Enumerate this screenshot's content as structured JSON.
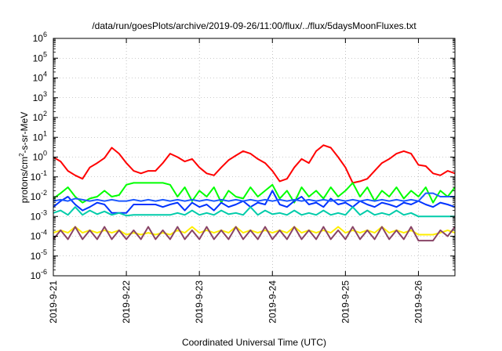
{
  "chart_data": {
    "type": "line",
    "title": "/data/run/goesPlots/archive/2019-09-26/11:00/flux/../flux/5daysMoonFluxes.txt",
    "xlabel": "Coordinated Universal Time (UTC)",
    "ylabel_parts": [
      "protons/cm",
      "2",
      "-s-sr-MeV"
    ],
    "y_scale": "log",
    "ylim_exp": [
      -6,
      6
    ],
    "y_ticks": [
      {
        "base": "10",
        "exp": "-6",
        "value": -6
      },
      {
        "base": "10",
        "exp": "-5",
        "value": -5
      },
      {
        "base": "10",
        "exp": "-4",
        "value": -4
      },
      {
        "base": "10",
        "exp": "-3",
        "value": -3
      },
      {
        "base": "10",
        "exp": "-2",
        "value": -2
      },
      {
        "base": "10",
        "exp": "-1",
        "value": -1
      },
      {
        "base": "10",
        "exp": "0",
        "value": 0
      },
      {
        "base": "10",
        "exp": "1",
        "value": 1
      },
      {
        "base": "10",
        "exp": "2",
        "value": 2
      },
      {
        "base": "10",
        "exp": "3",
        "value": 3
      },
      {
        "base": "10",
        "exp": "4",
        "value": 4
      },
      {
        "base": "10",
        "exp": "5",
        "value": 5
      },
      {
        "base": "10",
        "exp": "6",
        "value": 6
      }
    ],
    "xlim": [
      "2019-9-21",
      "2019-9-26 12:00"
    ],
    "xlim_days": [
      0,
      5.5
    ],
    "x_ticks": [
      {
        "label": "2019-9-21",
        "day": 0
      },
      {
        "label": "2019-9-22",
        "day": 1
      },
      {
        "label": "2019-9-23",
        "day": 2
      },
      {
        "label": "2019-9-24",
        "day": 3
      },
      {
        "label": "2019-9-25",
        "day": 4
      },
      {
        "label": "2019-9-26",
        "day": 5
      }
    ],
    "grid": true,
    "series": [
      {
        "color": "#ff0000",
        "x": [
          0,
          0.1,
          0.2,
          0.3,
          0.4,
          0.5,
          0.6,
          0.7,
          0.8,
          0.9,
          1,
          1.1,
          1.2,
          1.3,
          1.4,
          1.5,
          1.6,
          1.7,
          1.8,
          1.9,
          2,
          2.1,
          2.2,
          2.3,
          2.4,
          2.5,
          2.6,
          2.7,
          2.8,
          2.9,
          3,
          3.1,
          3.2,
          3.3,
          3.4,
          3.5,
          3.6,
          3.7,
          3.8,
          3.9,
          4,
          4.1,
          4.2,
          4.3,
          4.4,
          4.5,
          4.6,
          4.7,
          4.8,
          4.9,
          5,
          5.1,
          5.2,
          5.3,
          5.4,
          5.5
        ],
        "y": [
          1,
          0.6,
          0.2,
          0.12,
          0.08,
          0.3,
          0.5,
          0.9,
          3,
          1.5,
          0.5,
          0.2,
          0.15,
          0.2,
          0.2,
          0.5,
          1.5,
          1,
          0.6,
          0.8,
          0.3,
          0.15,
          0.12,
          0.3,
          0.7,
          1.2,
          2,
          1.5,
          0.8,
          0.5,
          0.2,
          0.06,
          0.08,
          0.3,
          0.8,
          0.5,
          2,
          4,
          3,
          1,
          0.3,
          0.05,
          0.06,
          0.08,
          0.2,
          0.5,
          0.8,
          1.5,
          2,
          1.5,
          0.4,
          0.35,
          0.15,
          0.12,
          0.2,
          0.15
        ]
      },
      {
        "color": "#00ff00",
        "x": [
          0,
          0.1,
          0.2,
          0.3,
          0.4,
          0.5,
          0.6,
          0.7,
          0.8,
          0.9,
          1,
          1.1,
          1.2,
          1.3,
          1.4,
          1.5,
          1.6,
          1.7,
          1.8,
          1.9,
          2,
          2.1,
          2.2,
          2.3,
          2.4,
          2.5,
          2.6,
          2.7,
          2.8,
          2.9,
          3,
          3.1,
          3.2,
          3.3,
          3.4,
          3.5,
          3.6,
          3.7,
          3.8,
          3.9,
          4,
          4.1,
          4.2,
          4.3,
          4.4,
          4.5,
          4.6,
          4.7,
          4.8,
          4.9,
          5,
          5.1,
          5.2,
          5.3,
          5.4,
          5.5
        ],
        "y": [
          0.008,
          0.015,
          0.03,
          0.01,
          0.005,
          0.008,
          0.01,
          0.02,
          0.01,
          0.012,
          0.04,
          0.05,
          0.05,
          0.05,
          0.05,
          0.05,
          0.04,
          0.01,
          0.03,
          0.006,
          0.02,
          0.01,
          0.03,
          0.005,
          0.02,
          0.01,
          0.008,
          0.03,
          0.01,
          0.02,
          0.04,
          0.008,
          0.02,
          0.005,
          0.03,
          0.01,
          0.02,
          0.008,
          0.03,
          0.01,
          0.02,
          0.05,
          0.01,
          0.03,
          0.006,
          0.02,
          0.01,
          0.03,
          0.008,
          0.02,
          0.01,
          0.03,
          0.005,
          0.02,
          0.01,
          0.03
        ]
      },
      {
        "color": "#0033ff",
        "x": [
          0,
          0.1,
          0.2,
          0.3,
          0.4,
          0.5,
          0.6,
          0.7,
          0.8,
          0.9,
          1,
          1.1,
          1.2,
          1.3,
          1.4,
          1.5,
          1.6,
          1.7,
          1.8,
          1.9,
          2,
          2.1,
          2.2,
          2.3,
          2.4,
          2.5,
          2.6,
          2.7,
          2.8,
          2.9,
          3,
          3.1,
          3.2,
          3.3,
          3.4,
          3.5,
          3.6,
          3.7,
          3.8,
          3.9,
          4,
          4.1,
          4.2,
          4.3,
          4.4,
          4.5,
          4.6,
          4.7,
          4.8,
          4.9,
          5,
          5.1,
          5.2,
          5.3,
          5.4,
          5.5
        ],
        "y": [
          0.003,
          0.006,
          0.01,
          0.004,
          0.002,
          0.003,
          0.005,
          0.004,
          0.0015,
          0.0015,
          0.0015,
          0.004,
          0.004,
          0.004,
          0.004,
          0.003,
          0.004,
          0.005,
          0.002,
          0.005,
          0.003,
          0.004,
          0.002,
          0.005,
          0.003,
          0.004,
          0.006,
          0.003,
          0.005,
          0.004,
          0.02,
          0.004,
          0.003,
          0.006,
          0.01,
          0.004,
          0.005,
          0.003,
          0.008,
          0.004,
          0.005,
          0.003,
          0.006,
          0.004,
          0.003,
          0.005,
          0.004,
          0.003,
          0.005,
          0.004,
          0.006,
          0.004,
          0.003,
          0.005,
          0.004,
          0.003
        ]
      },
      {
        "color": "#1e5aff",
        "x": [
          0,
          0.1,
          0.2,
          0.3,
          0.4,
          0.5,
          0.6,
          0.7,
          0.8,
          0.9,
          1,
          1.1,
          1.2,
          1.3,
          1.4,
          1.5,
          1.6,
          1.7,
          1.8,
          1.9,
          2,
          2.1,
          2.2,
          2.3,
          2.4,
          2.5,
          2.6,
          2.7,
          2.8,
          2.9,
          3,
          3.1,
          3.2,
          3.3,
          3.4,
          3.5,
          3.6,
          3.7,
          3.8,
          3.9,
          4,
          4.1,
          4.2,
          4.3,
          4.4,
          4.5,
          4.6,
          4.7,
          4.8,
          4.9,
          5,
          5.1,
          5.2,
          5.3,
          5.4,
          5.5
        ],
        "y": [
          0.006,
          0.007,
          0.006,
          0.008,
          0.007,
          0.006,
          0.007,
          0.006,
          0.007,
          0.006,
          0.006,
          0.007,
          0.006,
          0.007,
          0.006,
          0.007,
          0.006,
          0.007,
          0.006,
          0.007,
          0.006,
          0.007,
          0.006,
          0.007,
          0.006,
          0.007,
          0.006,
          0.007,
          0.006,
          0.007,
          0.006,
          0.007,
          0.006,
          0.007,
          0.006,
          0.007,
          0.006,
          0.007,
          0.006,
          0.007,
          0.006,
          0.007,
          0.006,
          0.007,
          0.006,
          0.007,
          0.006,
          0.007,
          0.006,
          0.007,
          0.006,
          0.015,
          0.015,
          0.01,
          0.01,
          0.01
        ]
      },
      {
        "color": "#00ccaa",
        "x": [
          0,
          0.1,
          0.2,
          0.3,
          0.4,
          0.5,
          0.6,
          0.7,
          0.8,
          0.9,
          1,
          1.1,
          1.2,
          1.3,
          1.4,
          1.5,
          1.6,
          1.7,
          1.8,
          1.9,
          2,
          2.1,
          2.2,
          2.3,
          2.4,
          2.5,
          2.6,
          2.7,
          2.8,
          2.9,
          3,
          3.1,
          3.2,
          3.3,
          3.4,
          3.5,
          3.6,
          3.7,
          3.8,
          3.9,
          4,
          4.1,
          4.2,
          4.3,
          4.4,
          4.5,
          4.6,
          4.7,
          4.8,
          4.9,
          5,
          5.1,
          5.2,
          5.3,
          5.4,
          5.5
        ],
        "y": [
          0.0015,
          0.002,
          0.0012,
          0.003,
          0.0012,
          0.002,
          0.0013,
          0.0018,
          0.0012,
          0.0015,
          0.0011,
          0.0012,
          0.0012,
          0.0012,
          0.0012,
          0.0012,
          0.0012,
          0.0015,
          0.0012,
          0.002,
          0.0012,
          0.0015,
          0.0012,
          0.002,
          0.0013,
          0.0015,
          0.0012,
          0.003,
          0.0012,
          0.002,
          0.0013,
          0.0015,
          0.0012,
          0.002,
          0.0012,
          0.0015,
          0.0012,
          0.002,
          0.0012,
          0.0015,
          0.0012,
          0.003,
          0.0012,
          0.002,
          0.0012,
          0.0015,
          0.0012,
          0.002,
          0.0012,
          0.0015,
          0.001,
          0.001,
          0.001,
          0.001,
          0.001,
          0.001
        ]
      },
      {
        "color": "#ffee00",
        "x": [
          0,
          0.1,
          0.2,
          0.3,
          0.4,
          0.5,
          0.6,
          0.7,
          0.8,
          0.9,
          1,
          1.1,
          1.2,
          1.3,
          1.4,
          1.5,
          1.6,
          1.7,
          1.8,
          1.9,
          2,
          2.1,
          2.2,
          2.3,
          2.4,
          2.5,
          2.6,
          2.7,
          2.8,
          2.9,
          3,
          3.1,
          3.2,
          3.3,
          3.4,
          3.5,
          3.6,
          3.7,
          3.8,
          3.9,
          4,
          4.1,
          4.2,
          4.3,
          4.4,
          4.5,
          4.6,
          4.7,
          4.8,
          4.9,
          5,
          5.1,
          5.2,
          5.3,
          5.4,
          5.5
        ],
        "y": [
          0.00015,
          0.0002,
          0.00015,
          0.0003,
          0.00015,
          0.0002,
          0.00015,
          0.0002,
          0.00015,
          0.0002,
          0.00012,
          0.00015,
          0.00012,
          0.00015,
          0.00012,
          0.00015,
          0.00012,
          0.0002,
          0.00015,
          0.0003,
          0.00015,
          0.0002,
          0.00015,
          0.0002,
          0.00015,
          0.0003,
          0.00015,
          0.0002,
          0.00015,
          0.0002,
          0.00015,
          0.0002,
          0.00015,
          0.0003,
          0.00015,
          0.0002,
          0.00015,
          0.0002,
          0.00015,
          0.0003,
          0.00015,
          0.0002,
          0.00015,
          0.0002,
          0.00015,
          0.0003,
          0.00015,
          0.0002,
          0.00015,
          0.0002,
          0.00012,
          0.00012,
          0.00012,
          0.00015,
          0.0002,
          0.00015
        ]
      },
      {
        "color": "#884466",
        "x": [
          0,
          0.1,
          0.2,
          0.3,
          0.4,
          0.5,
          0.6,
          0.7,
          0.8,
          0.9,
          1,
          1.1,
          1.2,
          1.3,
          1.4,
          1.5,
          1.6,
          1.7,
          1.8,
          1.9,
          2,
          2.1,
          2.2,
          2.3,
          2.4,
          2.5,
          2.6,
          2.7,
          2.8,
          2.9,
          3,
          3.1,
          3.2,
          3.3,
          3.4,
          3.5,
          3.6,
          3.7,
          3.8,
          3.9,
          4,
          4.1,
          4.2,
          4.3,
          4.4,
          4.5,
          4.6,
          4.7,
          4.8,
          4.9,
          5,
          5.1,
          5.2,
          5.3,
          5.4,
          5.5
        ],
        "y": [
          7e-05,
          0.0002,
          7e-05,
          0.0003,
          7e-05,
          0.0002,
          7e-05,
          0.0003,
          7e-05,
          0.0002,
          7e-05,
          0.0002,
          7e-05,
          0.0003,
          7e-05,
          0.0002,
          7e-05,
          0.0003,
          7e-05,
          0.0002,
          7e-05,
          0.0003,
          7e-05,
          0.0002,
          7e-05,
          0.0003,
          7e-05,
          0.0002,
          7e-05,
          0.0003,
          7e-05,
          0.0002,
          7e-05,
          0.0003,
          7e-05,
          0.0002,
          7e-05,
          0.0003,
          7e-05,
          0.0002,
          7e-05,
          0.0003,
          7e-05,
          0.0002,
          7e-05,
          0.0003,
          7e-05,
          0.0002,
          7e-05,
          0.0003,
          6e-05,
          6e-05,
          6e-05,
          0.0002,
          0.0001,
          0.0003
        ]
      }
    ]
  }
}
